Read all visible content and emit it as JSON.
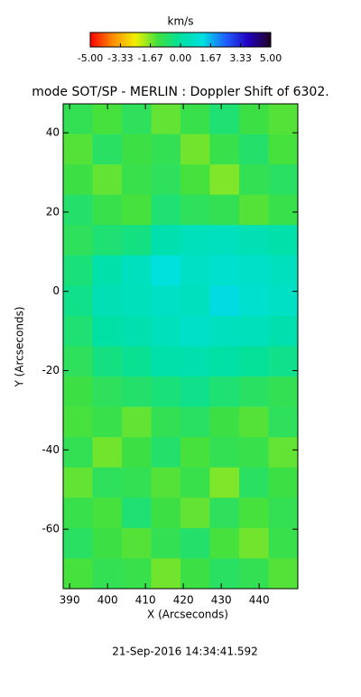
{
  "chart_data": {
    "type": "heatmap",
    "title": "mode SOT/SP - MERLIN : Doppler Shift of 6302.",
    "x_label": "X (Arcseconds)",
    "y_label": "Y (Arcseconds)",
    "footer": "21-Sep-2016 14:34:41.592",
    "colorbar_label": "km/s",
    "clim": [
      -5,
      5
    ],
    "colormap": [
      "#ff0000",
      "#ff8c00",
      "#f0f000",
      "#40e040",
      "#00e0a0",
      "#00e0e0",
      "#2060ff",
      "#2000c0",
      "#200020"
    ],
    "cticks": [
      {
        "value": -5,
        "label": "-5.00"
      },
      {
        "value": -3.33,
        "label": "-3.33"
      },
      {
        "value": -1.67,
        "label": "-1.67"
      },
      {
        "value": 0,
        "label": "0.00"
      },
      {
        "value": 1.67,
        "label": "1.67"
      },
      {
        "value": 3.33,
        "label": "3.33"
      },
      {
        "value": 5,
        "label": "5.00"
      }
    ],
    "xlim": [
      388.3,
      450.2
    ],
    "ylim": [
      -75,
      47.3
    ],
    "xticks": [
      390,
      400,
      410,
      420,
      430,
      440
    ],
    "yticks": [
      -60,
      -40,
      -20,
      0,
      20,
      40
    ],
    "z": [
      [
        -1.0,
        -1.3,
        -0.9,
        -1.5,
        -1.1,
        -0.6,
        -1.2,
        -1.4
      ],
      [
        -1.4,
        -0.8,
        -1.2,
        -1.0,
        -1.6,
        -1.1,
        -0.7,
        -1.3
      ],
      [
        -1.2,
        -1.5,
        -1.1,
        -0.9,
        -1.3,
        -1.7,
        -1.0,
        -0.8
      ],
      [
        -0.7,
        -1.1,
        -1.3,
        -0.6,
        -0.9,
        -1.0,
        -1.4,
        -1.1
      ],
      [
        -0.9,
        -0.6,
        -0.4,
        0.3,
        0.5,
        0.6,
        0.4,
        0.2
      ],
      [
        -0.5,
        0.2,
        0.6,
        1.2,
        0.7,
        0.9,
        0.8,
        0.6
      ],
      [
        -0.3,
        0.4,
        0.5,
        0.7,
        0.6,
        1.3,
        0.9,
        0.7
      ],
      [
        -0.6,
        0.1,
        0.3,
        0.5,
        0.8,
        0.6,
        0.5,
        0.3
      ],
      [
        -0.9,
        -0.4,
        -0.2,
        0.2,
        0.3,
        0.1,
        -0.1,
        -0.3
      ],
      [
        -1.2,
        -0.9,
        -0.7,
        -0.5,
        -0.3,
        -0.6,
        -0.8,
        -1.0
      ],
      [
        -1.3,
        -1.1,
        -1.5,
        -1.0,
        -0.8,
        -1.2,
        -1.4,
        -0.9
      ],
      [
        -1.0,
        -1.6,
        -1.2,
        -0.7,
        -1.3,
        -1.0,
        -1.1,
        -1.5
      ],
      [
        -1.5,
        -0.9,
        -1.0,
        -1.4,
        -1.1,
        -1.7,
        -0.8,
        -1.2
      ],
      [
        -1.1,
        -1.3,
        -0.6,
        -1.2,
        -1.5,
        -0.9,
        -1.3,
        -1.0
      ],
      [
        -0.8,
        -1.2,
        -1.4,
        -1.0,
        -0.7,
        -1.3,
        -1.6,
        -1.1
      ],
      [
        -1.3,
        -1.0,
        -1.1,
        -1.6,
        -1.2,
        -0.8,
        -1.0,
        -1.4
      ]
    ]
  }
}
